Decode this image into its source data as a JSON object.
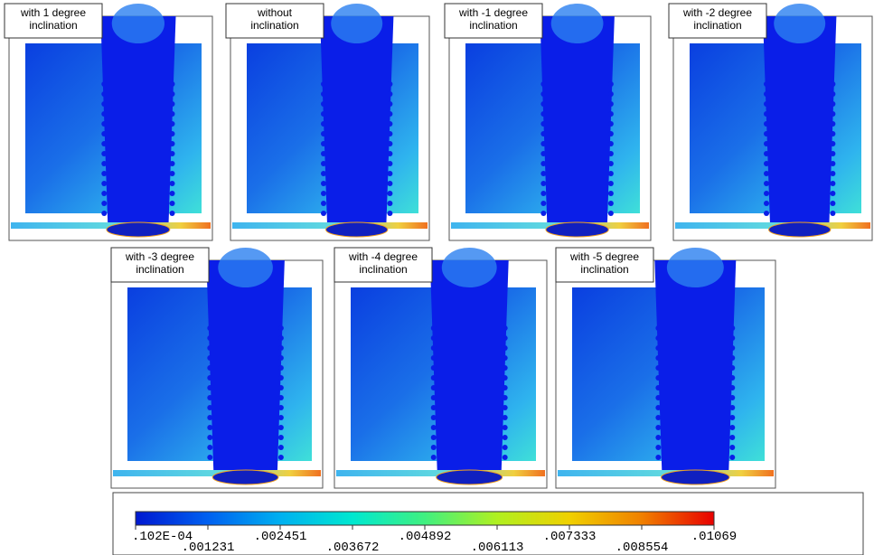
{
  "panels": [
    {
      "label": [
        "with 1 degree",
        "inclination"
      ]
    },
    {
      "label": [
        "without",
        "inclination"
      ]
    },
    {
      "label": [
        "with -1 degree",
        "inclination"
      ]
    },
    {
      "label": [
        "with -2 degree",
        "inclination"
      ]
    },
    {
      "label": [
        "with -3 degree",
        "inclination"
      ]
    },
    {
      "label": [
        "with -4 degree",
        "inclination"
      ]
    },
    {
      "label": [
        "with -5 degree",
        "inclination"
      ]
    }
  ],
  "legend": {
    "labels": [
      ".102E-04",
      ".001231",
      ".002451",
      ".003672",
      ".004892",
      ".006113",
      ".007333",
      ".008554",
      ".01069"
    ]
  }
}
